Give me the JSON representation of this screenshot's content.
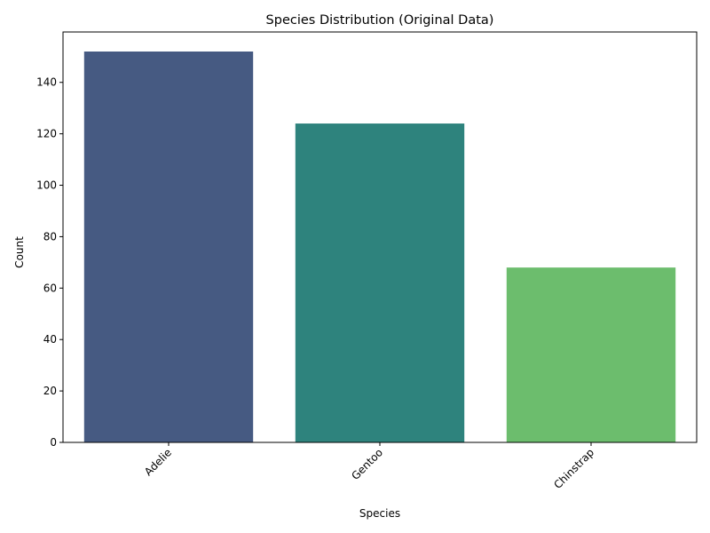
{
  "chart_data": {
    "type": "bar",
    "title": "Species Distribution (Original Data)",
    "xlabel": "Species",
    "ylabel": "Count",
    "categories": [
      "Adelie",
      "Gentoo",
      "Chinstrap"
    ],
    "values": [
      152,
      124,
      68
    ],
    "colors": [
      "#465a82",
      "#2e837d",
      "#6cbd6d"
    ],
    "ylim": [
      0,
      159.6
    ],
    "yticks": [
      0,
      20,
      40,
      60,
      80,
      100,
      120,
      140
    ],
    "grid": false,
    "xtick_rotation": 45
  }
}
